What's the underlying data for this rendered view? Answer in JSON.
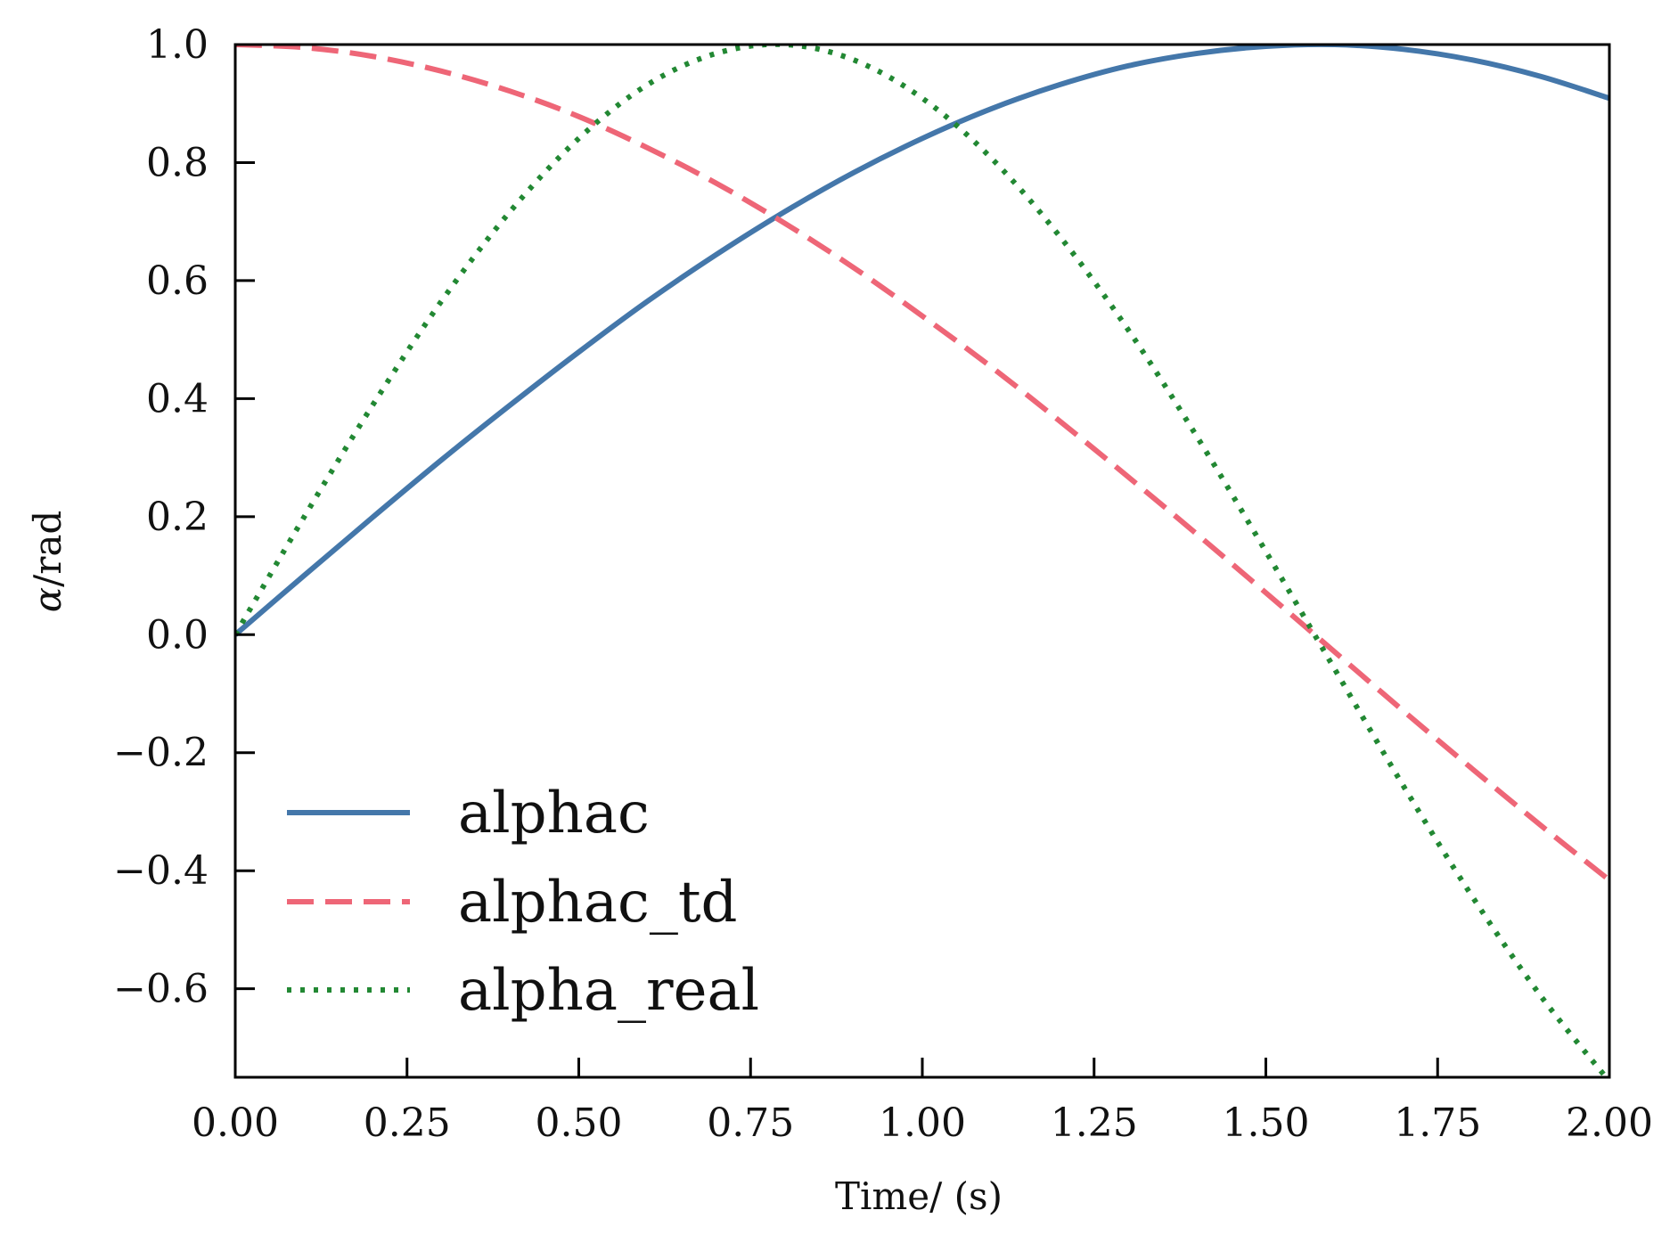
{
  "chart_data": {
    "type": "line",
    "title": "",
    "xlabel": "Time/ (s)",
    "ylabel_symbol": "α",
    "ylabel_unit": "/rad",
    "xlim": [
      0,
      2
    ],
    "ylim": [
      -0.75,
      1.0
    ],
    "grid": false,
    "legend_position": "lower-left",
    "x_ticks": [
      "0.00",
      "0.25",
      "0.50",
      "0.75",
      "1.00",
      "1.25",
      "1.50",
      "1.75",
      "2.00"
    ],
    "x_tick_values": [
      0,
      0.25,
      0.5,
      0.75,
      1.0,
      1.25,
      1.5,
      1.75,
      2.0
    ],
    "y_ticks": [
      "−0.6",
      "−0.4",
      "−0.2",
      "0.0",
      "0.2",
      "0.4",
      "0.6",
      "0.8",
      "1.0"
    ],
    "y_tick_values": [
      -0.6,
      -0.4,
      -0.2,
      0.0,
      0.2,
      0.4,
      0.6,
      0.8,
      1.0
    ],
    "x": [
      0.0,
      0.1,
      0.2,
      0.3,
      0.4,
      0.5,
      0.6,
      0.7,
      0.8,
      0.9,
      1.0,
      1.1,
      1.2,
      1.3,
      1.4,
      1.5,
      1.6,
      1.7,
      1.8,
      1.9,
      2.0
    ],
    "series": [
      {
        "name": "alphac",
        "color": "#4477aa",
        "dash": "solid",
        "values": [
          0.0,
          0.1,
          0.199,
          0.296,
          0.389,
          0.479,
          0.565,
          0.644,
          0.717,
          0.783,
          0.841,
          0.891,
          0.932,
          0.964,
          0.985,
          0.997,
          1.0,
          0.992,
          0.974,
          0.946,
          0.909
        ]
      },
      {
        "name": "alphac_td",
        "color": "#ee6677",
        "dash": "dashed",
        "values": [
          1.0,
          0.995,
          0.98,
          0.955,
          0.921,
          0.878,
          0.825,
          0.765,
          0.697,
          0.622,
          0.54,
          0.454,
          0.362,
          0.267,
          0.17,
          0.071,
          -0.029,
          -0.129,
          -0.227,
          -0.323,
          -0.416
        ]
      },
      {
        "name": "alpha_real",
        "color": "#228833",
        "dash": "dotted",
        "values": [
          0.0,
          0.199,
          0.389,
          0.565,
          0.717,
          0.841,
          0.932,
          0.985,
          1.0,
          0.974,
          0.909,
          0.808,
          0.675,
          0.516,
          0.335,
          0.141,
          -0.058,
          -0.256,
          -0.443,
          -0.612,
          -0.757
        ]
      }
    ]
  }
}
